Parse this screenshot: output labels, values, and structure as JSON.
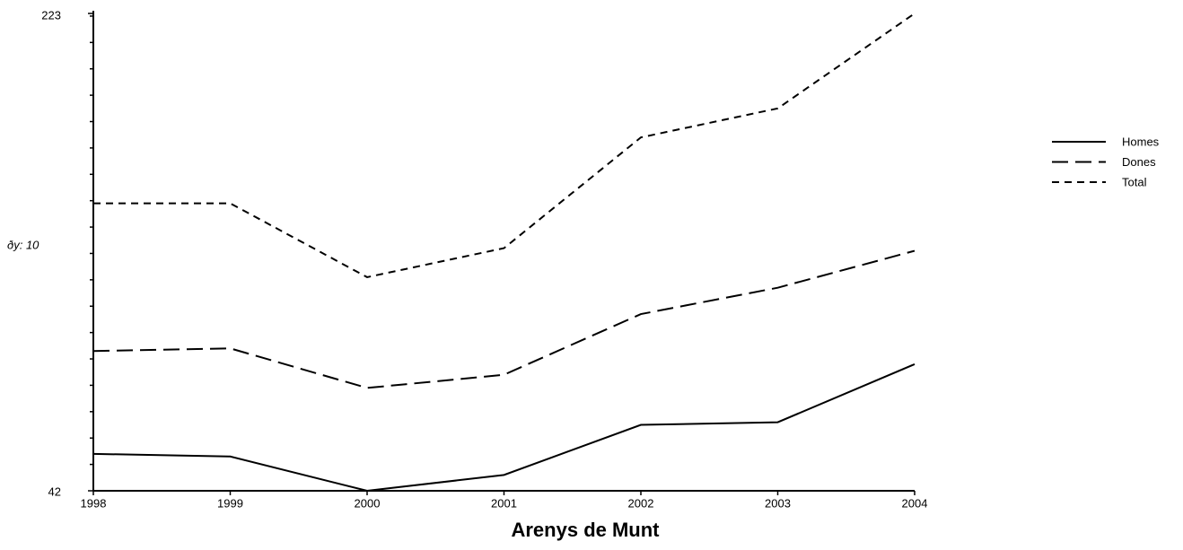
{
  "chart_data": {
    "type": "line",
    "title": "Arenys de Munt",
    "annotation": "ðy: 10",
    "categories": [
      "1998",
      "1999",
      "2000",
      "2001",
      "2002",
      "2003",
      "2004"
    ],
    "series": [
      {
        "name": "Homes",
        "color": "#000000",
        "dash": "none",
        "values": [
          56,
          55,
          42,
          48,
          67,
          68,
          90
        ]
      },
      {
        "name": "Dones",
        "color": "#000000",
        "dash": "18 8",
        "values": [
          95,
          96,
          81,
          86,
          109,
          119,
          133
        ]
      },
      {
        "name": "Total",
        "color": "#000000",
        "dash": "8 6",
        "values": [
          151,
          151,
          123,
          134,
          176,
          187,
          223
        ]
      }
    ],
    "ylim": [
      42,
      223
    ],
    "yticks": [
      42,
      223
    ],
    "yminorticks": [
      52,
      62,
      72,
      82,
      92,
      102,
      112,
      122,
      132,
      142,
      152,
      162,
      172,
      182,
      192,
      202,
      212,
      222
    ]
  }
}
